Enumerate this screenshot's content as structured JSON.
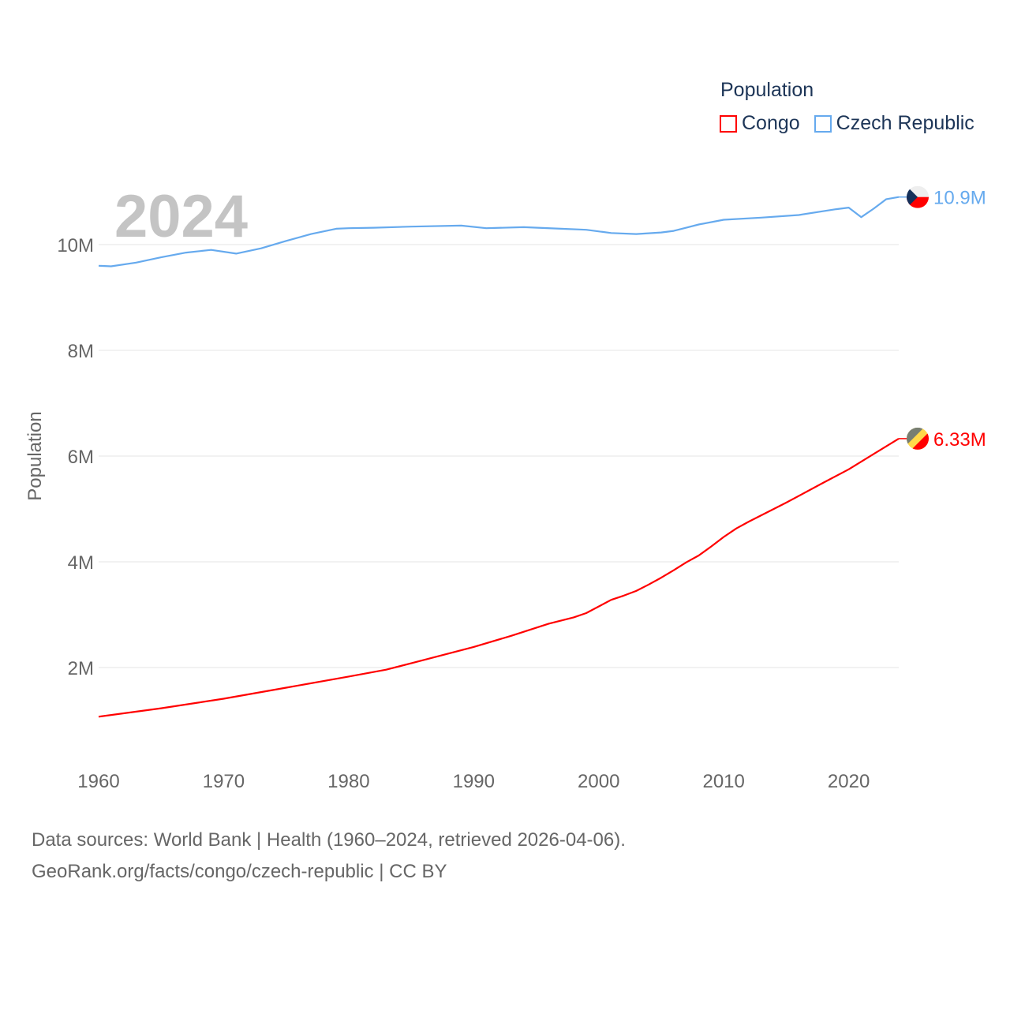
{
  "chart_data": {
    "type": "line",
    "title": "Population",
    "year_watermark": "2024",
    "xlabel": "",
    "ylabel": "Population",
    "xlim": [
      1960,
      2024
    ],
    "ylim": [
      0,
      11000000
    ],
    "x_ticks": [
      "1960",
      "1970",
      "1980",
      "1990",
      "2000",
      "2010",
      "2020"
    ],
    "y_ticks": [
      {
        "value": 2000000,
        "label": "2M"
      },
      {
        "value": 4000000,
        "label": "4M"
      },
      {
        "value": 6000000,
        "label": "6M"
      },
      {
        "value": 8000000,
        "label": "8M"
      },
      {
        "value": 10000000,
        "label": "10M"
      }
    ],
    "grid": true,
    "legend_placement": "top-right",
    "series": [
      {
        "name": "Congo",
        "color": "#ff0000",
        "end_label": "6.33M",
        "flag": "congo",
        "x": [
          1960,
          1965,
          1970,
          1975,
          1980,
          1983,
          1985,
          1990,
          1993,
          1996,
          1998,
          1999,
          2001,
          2002,
          2003,
          2004,
          2005,
          2006,
          2007,
          2008,
          2009,
          2010,
          2011,
          2012,
          2015,
          2018,
          2020,
          2022,
          2024
        ],
        "values": [
          1070000,
          1230000,
          1410000,
          1620000,
          1830000,
          1960000,
          2080000,
          2390000,
          2600000,
          2830000,
          2950000,
          3030000,
          3280000,
          3360000,
          3450000,
          3570000,
          3700000,
          3840000,
          3990000,
          4120000,
          4290000,
          4470000,
          4630000,
          4760000,
          5120000,
          5500000,
          5750000,
          6040000,
          6330000
        ]
      },
      {
        "name": "Czech Republic",
        "color": "#66aaee",
        "end_label": "10.9M",
        "flag": "czech-republic",
        "x": [
          1960,
          1961,
          1963,
          1965,
          1967,
          1969,
          1971,
          1973,
          1975,
          1977,
          1979,
          1980,
          1982,
          1985,
          1989,
          1991,
          1994,
          1997,
          1999,
          2001,
          2003,
          2005,
          2006,
          2007,
          2008,
          2010,
          2013,
          2016,
          2019,
          2020,
          2021,
          2022,
          2023,
          2024
        ],
        "values": [
          9600000,
          9590000,
          9660000,
          9760000,
          9850000,
          9900000,
          9830000,
          9930000,
          10070000,
          10200000,
          10300000,
          10310000,
          10320000,
          10340000,
          10360000,
          10310000,
          10330000,
          10300000,
          10280000,
          10220000,
          10200000,
          10230000,
          10260000,
          10320000,
          10380000,
          10470000,
          10510000,
          10560000,
          10670000,
          10700000,
          10520000,
          10680000,
          10860000,
          10900000
        ]
      }
    ]
  },
  "legend": {
    "title": "Population",
    "items": [
      "Congo",
      "Czech Republic"
    ]
  },
  "footer": {
    "line1": "Data sources: World Bank | Health (1960–2024, retrieved 2026-04-06).",
    "line2": "GeoRank.org/facts/congo/czech-republic | CC BY"
  }
}
